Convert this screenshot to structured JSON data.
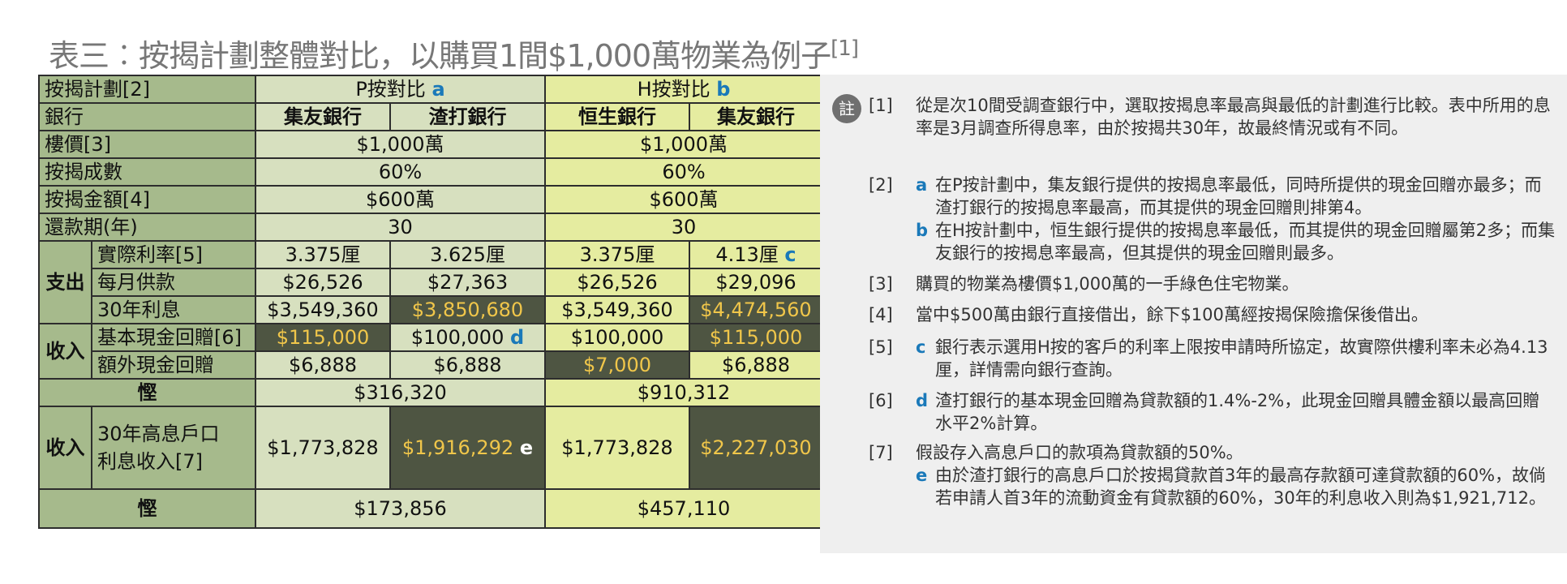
{
  "title": "表三︰按揭計劃整體對比，以購買1間$1,000萬物業為例子",
  "title_ref": "[1]",
  "table": {
    "hdr_plan": "按揭計劃[2]",
    "hdr_p": "P按對比",
    "hdr_p_mark": "a",
    "hdr_h": "H按對比",
    "hdr_h_mark": "b",
    "hdr_bank": "銀行",
    "banks": [
      "集友銀行",
      "渣打銀行",
      "恒生銀行",
      "集友銀行"
    ],
    "row_price": "樓價[3]",
    "price_p": "$1,000萬",
    "price_h": "$1,000萬",
    "row_ratio": "按揭成數",
    "ratio_p": "60%",
    "ratio_h": "60%",
    "row_amount": "按揭金額[4]",
    "amount_p": "$600萬",
    "amount_h": "$600萬",
    "row_term": "還款期(年)",
    "term_p": "30",
    "term_h": "30",
    "grp_out": "支出",
    "row_rate": "實際利率[5]",
    "rate": [
      "3.375厘",
      "3.625厘",
      "3.375厘",
      "4.13厘"
    ],
    "rate_mark": "c",
    "row_monthly": "每月供款",
    "monthly": [
      "$26,526",
      "$27,363",
      "$26,526",
      "$29,096"
    ],
    "row_interest": "30年利息",
    "interest": [
      "$3,549,360",
      "$3,850,680",
      "$3,549,360",
      "$4,474,560"
    ],
    "grp_in": "收入",
    "row_cash": "基本現金回贈[6]",
    "cash": [
      "$115,000",
      "$100,000",
      "$100,000",
      "$115,000"
    ],
    "cash_mark": "d",
    "row_extra": "額外現金回贈",
    "extra": [
      "$6,888",
      "$6,888",
      "$7,000",
      "$6,888"
    ],
    "save1_label": "慳",
    "save1_p": "$316,320",
    "save1_h": "$910,312",
    "grp_in2": "收入",
    "row_deposit_1": "30年高息戶口",
    "row_deposit_2": "利息收入[7]",
    "deposit": [
      "$1,773,828",
      "$1,916,292",
      "$1,773,828",
      "$2,227,030"
    ],
    "deposit_mark": "e",
    "save2_label": "慳",
    "save2_p": "$173,856",
    "save2_h": "$457,110"
  },
  "notes": {
    "icon": "註",
    "n1_num": "[1]",
    "n1_text": "從是次10間受調查銀行中，選取按揭息率最高與最低的計劃進行比較。表中所用的息率是3月調查所得息率，由於按揭共30年，故最終情況或有不同。",
    "n2_num": "[2]",
    "n2a_mark": "a",
    "n2a_text": "在P按計劃中，集友銀行提供的按揭息率最低，同時所提供的現金回贈亦最多；而渣打銀行的按揭息率最高，而其提供的現金回贈則排第4。",
    "n2b_mark": "b",
    "n2b_text": "在H按計劃中，恒生銀行提供的按揭息率最低，而其提供的現金回贈屬第2多；而集友銀行的按揭息率最高，但其提供的現金回贈則最多。",
    "n3_num": "[3]",
    "n3_text": "購買的物業為樓價$1,000萬的一手綠色住宅物業。",
    "n4_num": "[4]",
    "n4_text": "當中$500萬由銀行直接借出，餘下$100萬經按揭保險擔保後借出。",
    "n5_num": "[5]",
    "n5_mark": "c",
    "n5_text": "銀行表示選用H按的客戶的利率上限按申請時所協定，故實際供樓利率未必為4.13厘，詳情需向銀行查詢。",
    "n6_num": "[6]",
    "n6_mark": "d",
    "n6_text": "渣打銀行的基本現金回贈為貸款額的1.4%-2%，此現金回贈具體金額以最高回贈水平2%計算。",
    "n7_num": "[7]",
    "n7_text": "假設存入高息戶口的款項為貸款額的50%。",
    "n7e_mark": "e",
    "n7e_text": "由於渣打銀行的高息戶口於按揭貸款首3年的最高存款額可達貸款額的60%，故倘若申請人首3年的流動資金有貸款額的60%，30年的利息收入則為$1,921,712。"
  }
}
